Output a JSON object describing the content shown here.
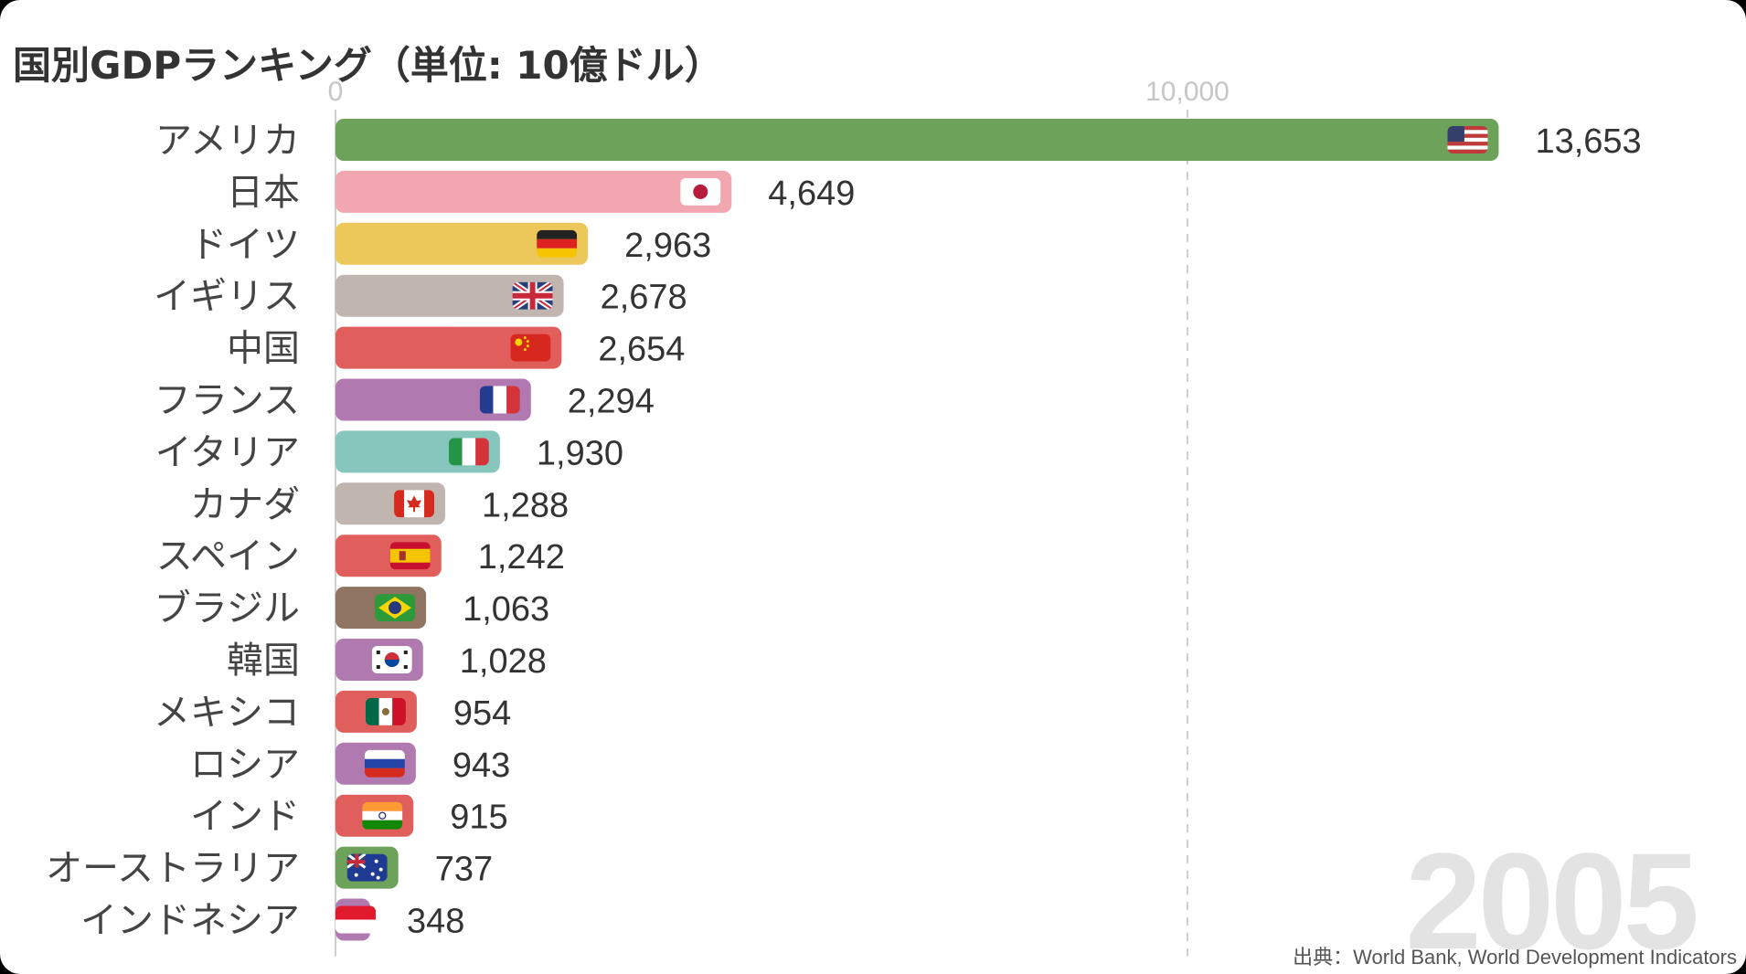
{
  "title": "国別GDPランキング（単位: 10億ドル）",
  "year": "2005",
  "source": "出典：World Bank, World Development Indicators",
  "chart_data": {
    "type": "bar",
    "orientation": "horizontal",
    "title": "国別GDPランキング（単位: 10億ドル）",
    "xlim": [
      0,
      14000
    ],
    "x_ticks": [
      0,
      10000
    ],
    "x_tick_labels": [
      "0",
      "10,000"
    ],
    "grid": "x-dashed",
    "categories": [
      "アメリカ",
      "日本",
      "ドイツ",
      "イギリス",
      "中国",
      "フランス",
      "イタリア",
      "カナダ",
      "スペイン",
      "ブラジル",
      "韓国",
      "メキシコ",
      "ロシア",
      "インド",
      "オーストラリア",
      "インドネシア"
    ],
    "values": [
      13653,
      4649,
      2963,
      2678,
      2654,
      2294,
      1930,
      1288,
      1242,
      1063,
      1028,
      954,
      943,
      915,
      737,
      348
    ],
    "value_labels": [
      "13,653",
      "4,649",
      "2,963",
      "2,678",
      "2,654",
      "2,294",
      "1,930",
      "1,288",
      "1,242",
      "1,063",
      "1,028",
      "954",
      "943",
      "915",
      "737",
      "348"
    ],
    "colors": [
      "#6da25a",
      "#f2a6b0",
      "#ecc85a",
      "#c1b5b0",
      "#e05e5c",
      "#b07ab0",
      "#86c6bd",
      "#c1b5b0",
      "#e05e5c",
      "#8f7561",
      "#b07ab0",
      "#e05e5c",
      "#b07ab0",
      "#e05e5c",
      "#6da25a",
      "#b07ab0"
    ],
    "flag_icons": [
      "usa-flag-icon",
      "japan-flag-icon",
      "germany-flag-icon",
      "uk-flag-icon",
      "china-flag-icon",
      "france-flag-icon",
      "italy-flag-icon",
      "canada-flag-icon",
      "spain-flag-icon",
      "brazil-flag-icon",
      "korea-flag-icon",
      "mexico-flag-icon",
      "russia-flag-icon",
      "india-flag-icon",
      "australia-flag-icon",
      "indonesia-flag-icon"
    ]
  }
}
